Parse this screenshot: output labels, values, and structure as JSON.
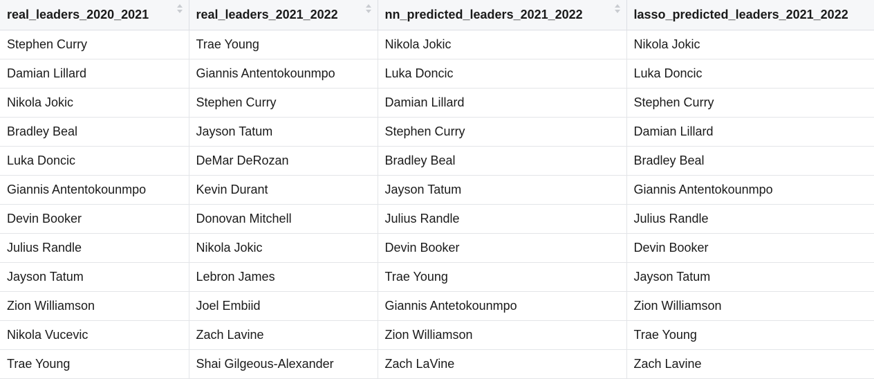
{
  "table": {
    "columns": [
      {
        "label": "real_leaders_2020_2021",
        "sortable": true
      },
      {
        "label": "real_leaders_2021_2022",
        "sortable": true
      },
      {
        "label": "nn_predicted_leaders_2021_2022",
        "sortable": true
      },
      {
        "label": "lasso_predicted_leaders_2021_2022",
        "sortable": false
      }
    ],
    "rows": [
      [
        "Stephen Curry",
        "Trae Young",
        "Nikola Jokic",
        "Nikola Jokic"
      ],
      [
        "Damian Lillard",
        "Giannis Antentokounmpo",
        "Luka Doncic",
        "Luka Doncic"
      ],
      [
        "Nikola Jokic",
        "Stephen Curry",
        "Damian Lillard",
        "Stephen Curry"
      ],
      [
        "Bradley Beal",
        "Jayson Tatum",
        "Stephen Curry",
        "Damian Lillard"
      ],
      [
        "Luka Doncic",
        "DeMar DeRozan",
        "Bradley Beal",
        "Bradley Beal"
      ],
      [
        "Giannis Antentokounmpo",
        "Kevin Durant",
        "Jayson Tatum",
        "Giannis Antentokounmpo"
      ],
      [
        "Devin Booker",
        "Donovan Mitchell",
        "Julius Randle",
        "Julius Randle"
      ],
      [
        "Julius Randle",
        "Nikola Jokic",
        "Devin Booker",
        "Devin Booker"
      ],
      [
        "Jayson Tatum",
        "Lebron James",
        "Trae Young",
        "Jayson Tatum"
      ],
      [
        "Zion Williamson",
        "Joel Embiid",
        "Giannis Antetokounmpo",
        "Zion Williamson"
      ],
      [
        "Nikola Vucevic",
        "Zach Lavine",
        "Zion Williamson",
        "Trae Young"
      ],
      [
        "Trae Young",
        "Shai Gilgeous-Alexander",
        "Zach LaVine",
        "Zach Lavine"
      ]
    ]
  }
}
